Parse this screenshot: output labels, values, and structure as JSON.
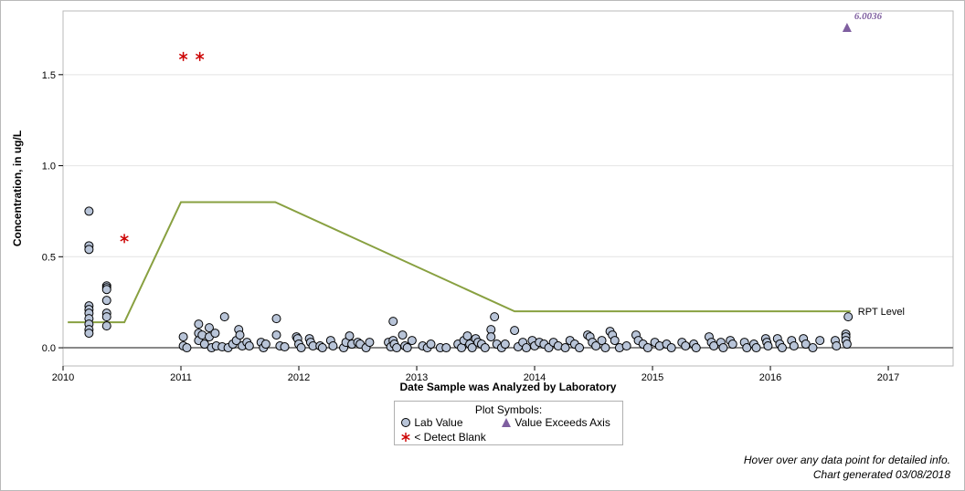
{
  "chart_data": {
    "type": "scatter",
    "xlabel": "Date Sample was Analyzed by Laboratory",
    "ylabel": "Concentration, in ug/L",
    "xlim": [
      2010.0,
      2017.55
    ],
    "ylim": [
      -0.1,
      1.85
    ],
    "x_ticks": [
      "2010",
      "2011",
      "2012",
      "2013",
      "2014",
      "2015",
      "2016",
      "2017"
    ],
    "y_ticks": [
      "0.0",
      "0.5",
      "1.0",
      "1.5"
    ],
    "grid": true,
    "rpt_level": {
      "name": "RPT Level",
      "x": [
        2010.04,
        2010.52,
        2011.0,
        2011.8,
        2013.83,
        2016.68
      ],
      "y": [
        0.14,
        0.14,
        0.8,
        0.8,
        0.2,
        0.2
      ]
    },
    "series": [
      {
        "name": "Lab Value",
        "points": [
          [
            2010.22,
            0.75
          ],
          [
            2010.22,
            0.56
          ],
          [
            2010.22,
            0.54
          ],
          [
            2010.22,
            0.23
          ],
          [
            2010.22,
            0.21
          ],
          [
            2010.22,
            0.19
          ],
          [
            2010.22,
            0.16
          ],
          [
            2010.22,
            0.13
          ],
          [
            2010.22,
            0.1
          ],
          [
            2010.22,
            0.08
          ],
          [
            2010.37,
            0.34
          ],
          [
            2010.37,
            0.33
          ],
          [
            2010.37,
            0.32
          ],
          [
            2010.37,
            0.26
          ],
          [
            2010.37,
            0.19
          ],
          [
            2010.37,
            0.17
          ],
          [
            2010.37,
            0.12
          ],
          [
            2011.02,
            0.06
          ],
          [
            2011.02,
            0.01
          ],
          [
            2011.05,
            0.0
          ],
          [
            2011.15,
            0.13
          ],
          [
            2011.15,
            0.08
          ],
          [
            2011.15,
            0.04
          ],
          [
            2011.18,
            0.07
          ],
          [
            2011.2,
            0.02
          ],
          [
            2011.24,
            0.11
          ],
          [
            2011.24,
            0.06
          ],
          [
            2011.26,
            0.0
          ],
          [
            2011.29,
            0.08
          ],
          [
            2011.3,
            0.01
          ],
          [
            2011.35,
            0.005
          ],
          [
            2011.37,
            0.17
          ],
          [
            2011.4,
            0.0
          ],
          [
            2011.44,
            0.02
          ],
          [
            2011.47,
            0.04
          ],
          [
            2011.49,
            0.1
          ],
          [
            2011.5,
            0.07
          ],
          [
            2011.52,
            0.01
          ],
          [
            2011.56,
            0.03
          ],
          [
            2011.58,
            0.01
          ],
          [
            2011.68,
            0.03
          ],
          [
            2011.7,
            0.0
          ],
          [
            2011.72,
            0.02
          ],
          [
            2011.81,
            0.16
          ],
          [
            2011.81,
            0.07
          ],
          [
            2011.84,
            0.01
          ],
          [
            2011.88,
            0.005
          ],
          [
            2011.98,
            0.06
          ],
          [
            2011.99,
            0.05
          ],
          [
            2012.0,
            0.02
          ],
          [
            2012.02,
            0.0
          ],
          [
            2012.09,
            0.05
          ],
          [
            2012.1,
            0.03
          ],
          [
            2012.12,
            0.01
          ],
          [
            2012.18,
            0.01
          ],
          [
            2012.2,
            0.0
          ],
          [
            2012.27,
            0.04
          ],
          [
            2012.29,
            0.01
          ],
          [
            2012.38,
            0.0
          ],
          [
            2012.4,
            0.03
          ],
          [
            2012.43,
            0.065
          ],
          [
            2012.45,
            0.02
          ],
          [
            2012.5,
            0.03
          ],
          [
            2012.52,
            0.02
          ],
          [
            2012.57,
            0.0
          ],
          [
            2012.6,
            0.03
          ],
          [
            2012.76,
            0.03
          ],
          [
            2012.78,
            0.005
          ],
          [
            2012.8,
            0.145
          ],
          [
            2012.8,
            0.04
          ],
          [
            2012.81,
            0.02
          ],
          [
            2012.83,
            0.0
          ],
          [
            2012.88,
            0.07
          ],
          [
            2012.9,
            0.01
          ],
          [
            2012.92,
            0.0
          ],
          [
            2012.96,
            0.04
          ],
          [
            2013.05,
            0.01
          ],
          [
            2013.09,
            0.0
          ],
          [
            2013.12,
            0.02
          ],
          [
            2013.2,
            0.0
          ],
          [
            2013.25,
            0.0
          ],
          [
            2013.35,
            0.02
          ],
          [
            2013.38,
            0.0
          ],
          [
            2013.4,
            0.04
          ],
          [
            2013.43,
            0.065
          ],
          [
            2013.45,
            0.02
          ],
          [
            2013.47,
            0.0
          ],
          [
            2013.5,
            0.05
          ],
          [
            2013.52,
            0.03
          ],
          [
            2013.55,
            0.02
          ],
          [
            2013.58,
            0.0
          ],
          [
            2013.63,
            0.1
          ],
          [
            2013.63,
            0.06
          ],
          [
            2013.66,
            0.17
          ],
          [
            2013.68,
            0.02
          ],
          [
            2013.72,
            0.0
          ],
          [
            2013.75,
            0.02
          ],
          [
            2013.83,
            0.095
          ],
          [
            2013.86,
            0.005
          ],
          [
            2013.9,
            0.03
          ],
          [
            2013.93,
            0.0
          ],
          [
            2013.98,
            0.04
          ],
          [
            2014.0,
            0.01
          ],
          [
            2014.04,
            0.03
          ],
          [
            2014.08,
            0.02
          ],
          [
            2014.12,
            0.0
          ],
          [
            2014.16,
            0.03
          ],
          [
            2014.2,
            0.01
          ],
          [
            2014.26,
            0.0
          ],
          [
            2014.3,
            0.04
          ],
          [
            2014.34,
            0.02
          ],
          [
            2014.38,
            0.0
          ],
          [
            2014.45,
            0.07
          ],
          [
            2014.47,
            0.06
          ],
          [
            2014.49,
            0.03
          ],
          [
            2014.52,
            0.01
          ],
          [
            2014.57,
            0.04
          ],
          [
            2014.6,
            0.0
          ],
          [
            2014.64,
            0.09
          ],
          [
            2014.66,
            0.07
          ],
          [
            2014.68,
            0.04
          ],
          [
            2014.72,
            0.0
          ],
          [
            2014.78,
            0.01
          ],
          [
            2014.86,
            0.07
          ],
          [
            2014.88,
            0.04
          ],
          [
            2014.92,
            0.02
          ],
          [
            2014.96,
            0.0
          ],
          [
            2015.02,
            0.03
          ],
          [
            2015.06,
            0.01
          ],
          [
            2015.12,
            0.02
          ],
          [
            2015.16,
            0.0
          ],
          [
            2015.25,
            0.03
          ],
          [
            2015.28,
            0.01
          ],
          [
            2015.35,
            0.02
          ],
          [
            2015.37,
            0.0
          ],
          [
            2015.48,
            0.06
          ],
          [
            2015.5,
            0.03
          ],
          [
            2015.52,
            0.01
          ],
          [
            2015.58,
            0.03
          ],
          [
            2015.6,
            0.0
          ],
          [
            2015.66,
            0.04
          ],
          [
            2015.68,
            0.02
          ],
          [
            2015.78,
            0.03
          ],
          [
            2015.8,
            0.0
          ],
          [
            2015.86,
            0.02
          ],
          [
            2015.88,
            0.0
          ],
          [
            2015.96,
            0.05
          ],
          [
            2015.97,
            0.03
          ],
          [
            2015.98,
            0.01
          ],
          [
            2016.06,
            0.05
          ],
          [
            2016.08,
            0.02
          ],
          [
            2016.1,
            0.0
          ],
          [
            2016.18,
            0.04
          ],
          [
            2016.2,
            0.01
          ],
          [
            2016.28,
            0.05
          ],
          [
            2016.3,
            0.02
          ],
          [
            2016.36,
            0.0
          ],
          [
            2016.42,
            0.04
          ],
          [
            2016.55,
            0.04
          ],
          [
            2016.56,
            0.01
          ],
          [
            2016.64,
            0.075
          ],
          [
            2016.64,
            0.06
          ],
          [
            2016.64,
            0.04
          ],
          [
            2016.65,
            0.02
          ],
          [
            2016.66,
            0.17
          ]
        ]
      },
      {
        "name": "< Detect Blank",
        "points": [
          [
            2010.52,
            0.6
          ],
          [
            2011.02,
            1.6
          ],
          [
            2011.16,
            1.6
          ]
        ]
      },
      {
        "name": "Value Exceeds Axis",
        "points": [
          [
            2016.65,
            1.76
          ]
        ],
        "label": "6.0036"
      }
    ],
    "colors": {
      "lab_value_fill": "#b8c4d8",
      "lab_value_stroke": "#000000",
      "blank": "#cc0000",
      "exceeds": "#7f5fa0",
      "rpt_line": "#88a040",
      "zero_line": "#888888",
      "grid": "#e4e4e4"
    },
    "legend": {
      "title": "Plot Symbols:",
      "items": [
        "Lab Value",
        "Value Exceeds Axis",
        "< Detect Blank"
      ]
    }
  },
  "footer": {
    "hover_note": "Hover over any data point for detailed info.",
    "generated": "Chart generated 03/08/2018"
  }
}
